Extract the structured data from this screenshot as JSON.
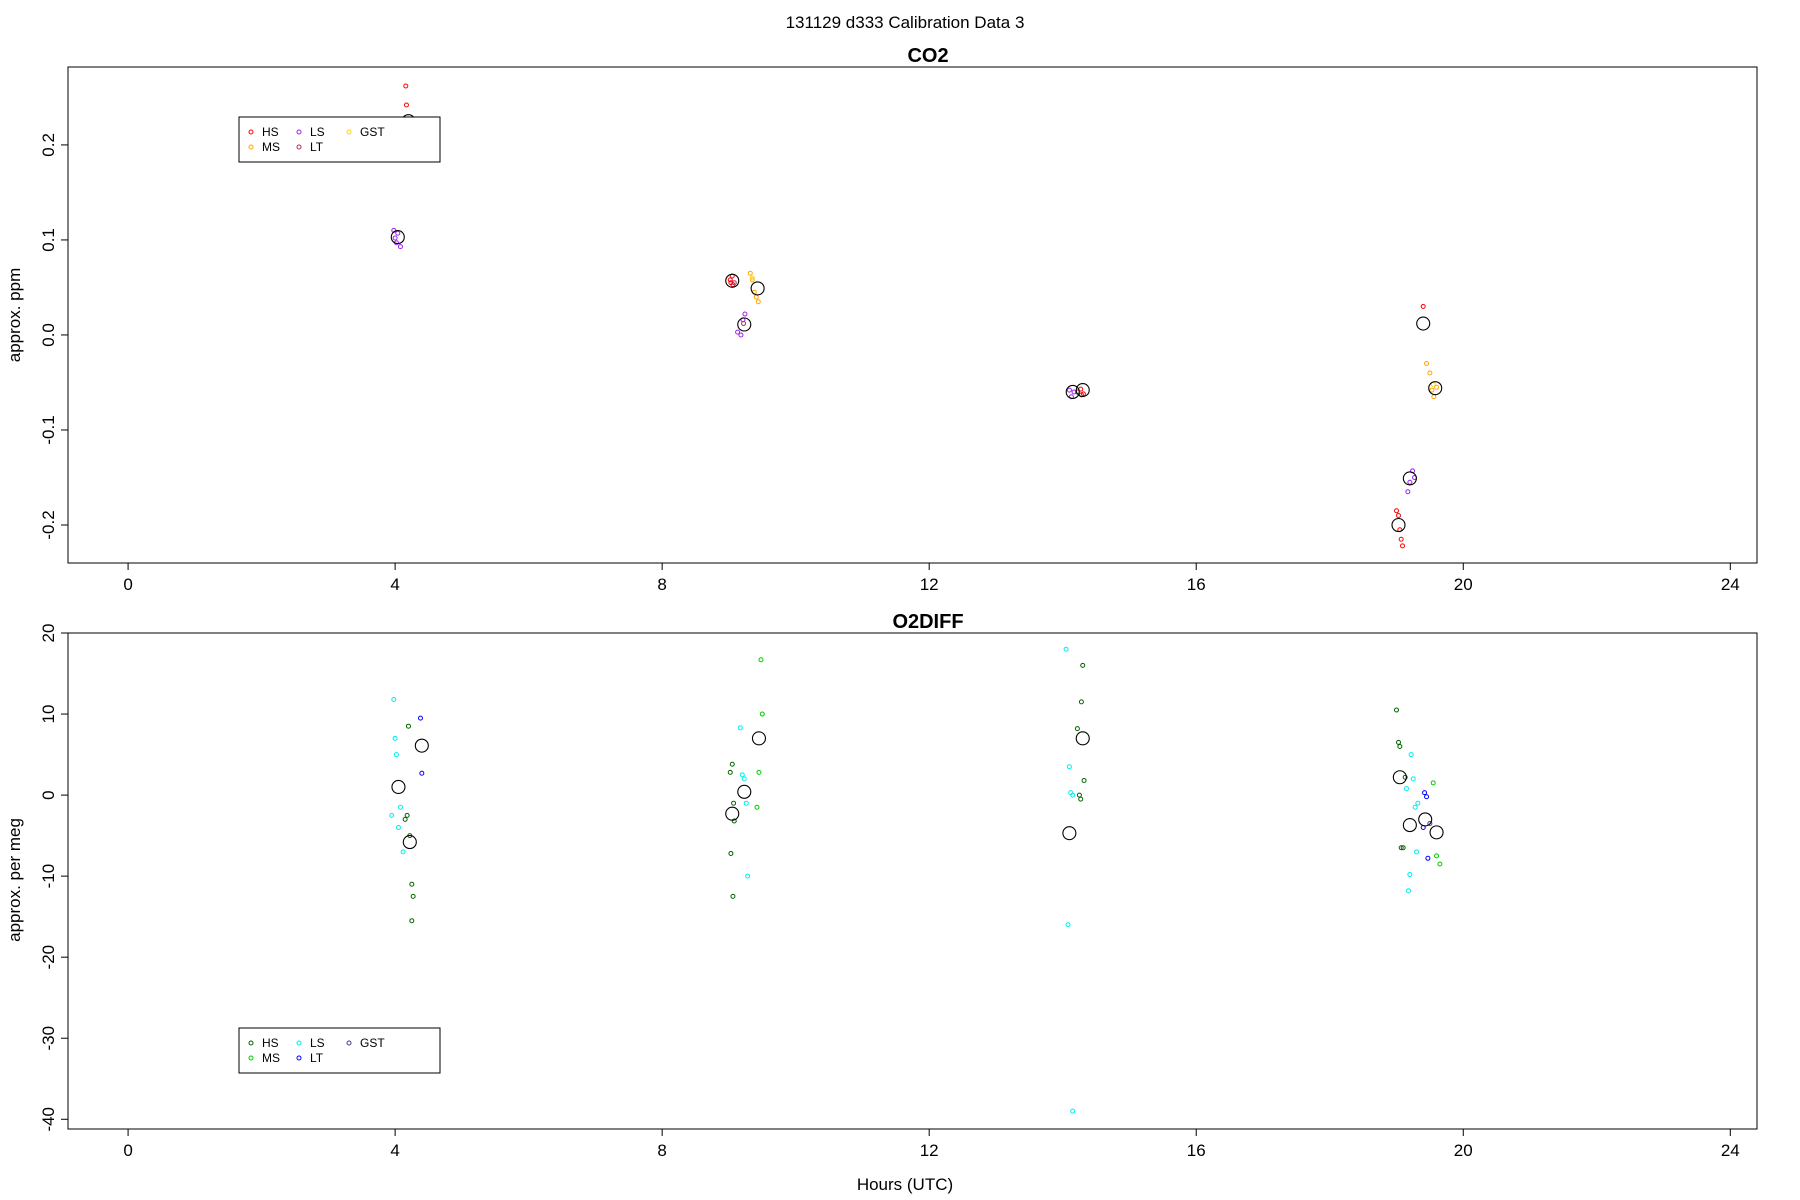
{
  "page": {
    "title": "131129    d333    Calibration Data 3",
    "xlabel": "Hours (UTC)"
  },
  "chart_data": [
    {
      "type": "scatter",
      "title": "CO2",
      "xlabel": "",
      "ylabel": "approx. ppm",
      "xlim": [
        -0.9,
        24.4
      ],
      "ylim": [
        -0.24,
        0.282
      ],
      "xticks": [
        0,
        4,
        8,
        12,
        16,
        20,
        24
      ],
      "yticks": [
        -0.2,
        -0.1,
        0.0,
        0.1,
        0.2
      ],
      "ytick_labels": [
        "-0.2",
        "-0.1",
        "0.0",
        "0.1",
        "0.2"
      ],
      "grid": false,
      "legend_position": "top-left",
      "series": [
        {
          "name": "HS",
          "color": "#ff0000",
          "x": [
            4.16,
            4.17,
            9.02,
            9.03,
            9.05,
            9.06,
            14.27,
            14.28,
            14.31,
            19.0,
            19.03,
            19.05,
            19.07,
            19.09,
            19.4
          ],
          "y": [
            0.262,
            0.242,
            0.058,
            0.055,
            0.062,
            0.053,
            -0.057,
            -0.063,
            -0.062,
            -0.185,
            -0.19,
            -0.205,
            -0.215,
            -0.222,
            0.03
          ]
        },
        {
          "name": "MS",
          "color": "#ffa500",
          "x": [
            9.32,
            9.35,
            9.38,
            9.41,
            9.44,
            19.45,
            19.5,
            19.53,
            19.56,
            19.6
          ],
          "y": [
            0.065,
            0.058,
            0.045,
            0.04,
            0.035,
            -0.03,
            -0.04,
            -0.058,
            -0.065,
            -0.055
          ]
        },
        {
          "name": "LS",
          "color": "#a020f0",
          "x": [
            3.98,
            4.0,
            4.02,
            4.04,
            4.08,
            9.13,
            9.18,
            9.21,
            9.24,
            14.1,
            14.13,
            14.17,
            19.17,
            19.2,
            19.24,
            19.27
          ],
          "y": [
            0.11,
            0.102,
            0.097,
            0.107,
            0.093,
            0.003,
            0.0,
            0.016,
            0.022,
            -0.058,
            -0.065,
            -0.06,
            -0.165,
            -0.155,
            -0.143,
            -0.15
          ]
        },
        {
          "name": "LT",
          "color": "#b03060",
          "x": [
            9.08,
            9.22,
            14.22
          ],
          "y": [
            0.055,
            0.012,
            -0.06
          ]
        },
        {
          "name": "GST",
          "color": "#ffd700",
          "x": [
            9.35,
            19.55
          ],
          "y": [
            0.06,
            -0.052
          ]
        },
        {
          "name": "",
          "color": "#000000",
          "marker": "large",
          "x": [
            4.04,
            4.2,
            9.05,
            9.23,
            9.43,
            14.15,
            14.3,
            19.03,
            19.2,
            19.4,
            19.58
          ],
          "y": [
            0.103,
            0.225,
            0.057,
            0.011,
            0.049,
            -0.06,
            -0.058,
            -0.2,
            -0.151,
            0.012,
            -0.056
          ]
        }
      ]
    },
    {
      "type": "scatter",
      "title": "O2DIFF",
      "xlabel": "Hours (UTC)",
      "ylabel": "approx. per meg",
      "xlim": [
        -0.9,
        24.4
      ],
      "ylim": [
        -41.2,
        20.0
      ],
      "xticks": [
        0,
        4,
        8,
        12,
        16,
        20,
        24
      ],
      "yticks": [
        -40,
        -30,
        -20,
        -10,
        0,
        10,
        20
      ],
      "ytick_labels": [
        "-40",
        "-30",
        "-20",
        "-10",
        "0",
        "10",
        "20"
      ],
      "grid": false,
      "legend_position": "bottom-left",
      "series": [
        {
          "name": "HS",
          "color": "#006400",
          "x": [
            4.2,
            4.22,
            4.18,
            4.15,
            4.25,
            4.27,
            4.25,
            9.02,
            9.05,
            9.08,
            9.03,
            9.06,
            9.07,
            14.22,
            14.28,
            14.3,
            14.25,
            14.32,
            14.27,
            19.0,
            19.03,
            19.05,
            19.07,
            19.1,
            19.13
          ],
          "y": [
            8.5,
            -5.0,
            -2.5,
            -3.0,
            -11.0,
            -12.5,
            -15.5,
            2.8,
            3.8,
            -3.2,
            -7.2,
            -12.5,
            -1.0,
            8.2,
            11.5,
            16.0,
            0.0,
            1.8,
            -0.5,
            10.5,
            6.5,
            6.0,
            -6.5,
            -6.5,
            2.2
          ]
        },
        {
          "name": "MS",
          "color": "#00cd00",
          "x": [
            9.48,
            9.5,
            9.45,
            9.42,
            19.55,
            19.6,
            19.65
          ],
          "y": [
            16.7,
            10.0,
            2.8,
            -1.5,
            1.5,
            -7.5,
            -8.5
          ]
        },
        {
          "name": "LS",
          "color": "#00eeee",
          "x": [
            3.98,
            4.0,
            4.02,
            4.05,
            4.08,
            3.95,
            4.12,
            9.17,
            9.2,
            9.23,
            9.26,
            9.28,
            14.05,
            14.1,
            14.12,
            14.15,
            14.08,
            19.22,
            19.25,
            19.3,
            19.28,
            19.2,
            19.18,
            19.15,
            19.32
          ],
          "y": [
            11.8,
            7.0,
            5.0,
            -4.0,
            -1.5,
            -2.5,
            -7.0,
            8.3,
            2.5,
            2.0,
            -1.0,
            -10.0,
            18.0,
            3.5,
            0.3,
            0.0,
            -16.0,
            5.0,
            2.0,
            -7.0,
            -1.5,
            -9.8,
            -11.8,
            0.8,
            -1.0
          ]
        },
        {
          "name": "LT",
          "color": "#0000ff",
          "x": [
            4.38,
            4.4,
            19.42,
            19.45,
            19.47,
            19.4
          ],
          "y": [
            9.5,
            2.7,
            0.3,
            -0.2,
            -7.8,
            -4.0
          ]
        },
        {
          "name": "GST",
          "color": "#483d8b",
          "x": [
            19.5
          ],
          "y": [
            -3.5
          ]
        },
        {
          "name": "",
          "color": "#000000",
          "marker": "large",
          "x": [
            4.05,
            4.22,
            4.4,
            9.05,
            9.23,
            9.45,
            14.1,
            14.3,
            19.05,
            19.2,
            19.43,
            19.6
          ],
          "y": [
            1.0,
            -5.8,
            6.1,
            -2.3,
            0.4,
            7.0,
            -4.7,
            7.0,
            2.2,
            -3.7,
            -3.0,
            -4.6
          ]
        },
        {
          "name": "",
          "color": "#00eeee",
          "x": [
            14.15
          ],
          "y": [
            -39.0
          ],
          "outlier": true
        }
      ]
    }
  ]
}
